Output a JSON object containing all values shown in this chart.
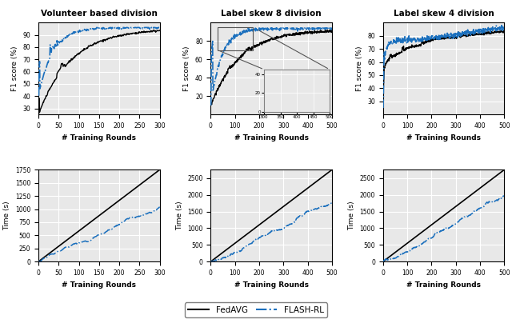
{
  "titles_top": [
    "Volunteer based division",
    "Label skew 8 division",
    "Label skew 4 division"
  ],
  "xlabel": "# Training Rounds",
  "ylabel_f1": "F1 score (%)",
  "ylabel_time": "Time (s)",
  "fedavg_color": "#000000",
  "flash_color": "#1a6fbd",
  "bg_color": "#e8e8e8",
  "grid_color": "#ffffff",
  "legend_fedavg": "FedAVG",
  "legend_flash": "FLASH-RL"
}
